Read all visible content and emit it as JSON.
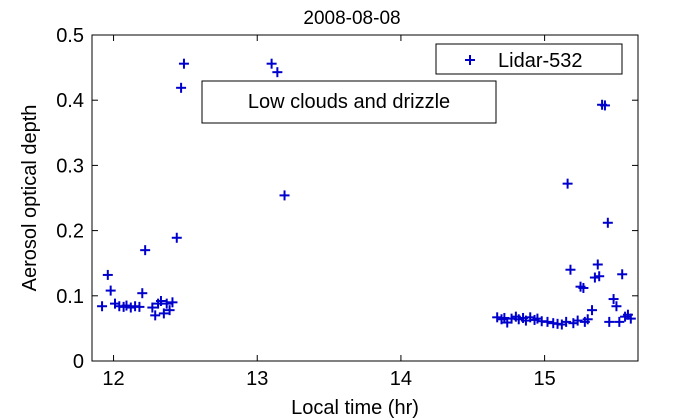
{
  "chart_data": {
    "type": "scatter",
    "title": "2008-08-08",
    "xlabel": "Local time (hr)",
    "ylabel": "Aerosol optical depth",
    "xlim": [
      11.85,
      15.65
    ],
    "ylim": [
      0,
      0.5
    ],
    "xticks": [
      12,
      13,
      14,
      15
    ],
    "yticks": [
      0,
      0.1,
      0.2,
      0.3,
      0.4,
      0.5
    ],
    "xtick_labels": [
      "12",
      "13",
      "14",
      "15"
    ],
    "ytick_labels": [
      "0",
      "0.1",
      "0.2",
      "0.3",
      "0.4",
      "0.5"
    ],
    "grid": false,
    "legend_position": "top-right",
    "annotation": "Low clouds and drizzle",
    "series": [
      {
        "name": "Lidar-532",
        "color": "#0000cc",
        "marker": "plus",
        "x": [
          11.92,
          11.96,
          11.98,
          12.01,
          12.04,
          12.07,
          12.09,
          12.12,
          12.15,
          12.18,
          12.2,
          12.22,
          12.27,
          12.29,
          12.31,
          12.33,
          12.35,
          12.37,
          12.39,
          12.41,
          12.44,
          12.47,
          12.49,
          13.1,
          13.14,
          13.17,
          13.19,
          14.67,
          14.7,
          14.72,
          14.74,
          14.77,
          14.8,
          14.82,
          14.85,
          14.87,
          14.9,
          14.93,
          14.95,
          14.98,
          15.02,
          15.06,
          15.09,
          15.12,
          15.15,
          15.16,
          15.18,
          15.2,
          15.23,
          15.25,
          15.27,
          15.28,
          15.3,
          15.33,
          15.35,
          15.37,
          15.38,
          15.4,
          15.42,
          15.44,
          15.45,
          15.48,
          15.5,
          15.52,
          15.54,
          15.56,
          15.58,
          15.6
        ],
        "y": [
          0.084,
          0.132,
          0.108,
          0.088,
          0.084,
          0.083,
          0.085,
          0.082,
          0.084,
          0.083,
          0.104,
          0.17,
          0.082,
          0.07,
          0.088,
          0.092,
          0.073,
          0.088,
          0.078,
          0.09,
          0.189,
          0.419,
          0.456,
          0.456,
          0.443,
          0.387,
          0.254,
          0.067,
          0.064,
          0.066,
          0.059,
          0.065,
          0.068,
          0.064,
          0.066,
          0.062,
          0.067,
          0.063,
          0.065,
          0.061,
          0.06,
          0.058,
          0.057,
          0.056,
          0.06,
          0.272,
          0.14,
          0.058,
          0.062,
          0.114,
          0.112,
          0.06,
          0.064,
          0.078,
          0.128,
          0.148,
          0.13,
          0.393,
          0.392,
          0.212,
          0.06,
          0.095,
          0.084,
          0.06,
          0.133,
          0.068,
          0.071,
          0.065
        ]
      }
    ]
  }
}
